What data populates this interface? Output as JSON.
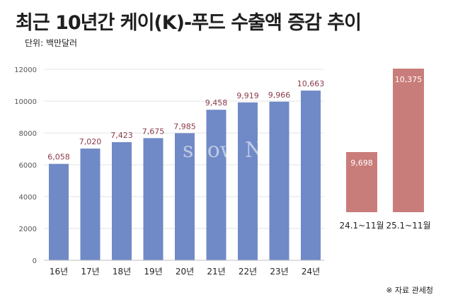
{
  "header": {
    "title": "최근 10년간 케이(K)-푸드 수출액 증감 추이",
    "unit": "단위: 백만달러"
  },
  "footer": {
    "source": "※ 자료 관세청"
  },
  "watermark": "show N",
  "colors": {
    "annual_bar": "#7089c7",
    "period_bar": "#c97d7a",
    "annual_label": "#8b3a4a",
    "period_label": "#ffffff"
  },
  "chart_data": [
    {
      "type": "bar",
      "title": "최근 10년간 케이(K)-푸드 수출액 증감 추이",
      "ylabel": "단위: 백만달러",
      "xlabel": "",
      "categories": [
        "16년",
        "17년",
        "18년",
        "19년",
        "20년",
        "21년",
        "22년",
        "23년",
        "24년"
      ],
      "values": [
        6058,
        7020,
        7423,
        7675,
        7985,
        9458,
        9919,
        9966,
        10663
      ],
      "value_labels": [
        "6,058",
        "7,020",
        "7,423",
        "7,675",
        "7,985",
        "9,458",
        "9,919",
        "9,966",
        "10,663"
      ],
      "ylim": [
        0,
        12000
      ],
      "yticks": [
        0,
        2000,
        4000,
        6000,
        8000,
        10000,
        12000
      ],
      "grid": true
    },
    {
      "type": "bar",
      "categories": [
        "24.1~11월",
        "25.1~11월"
      ],
      "values": [
        9698,
        10375
      ],
      "value_labels": [
        "9,698",
        "10,375"
      ]
    }
  ]
}
